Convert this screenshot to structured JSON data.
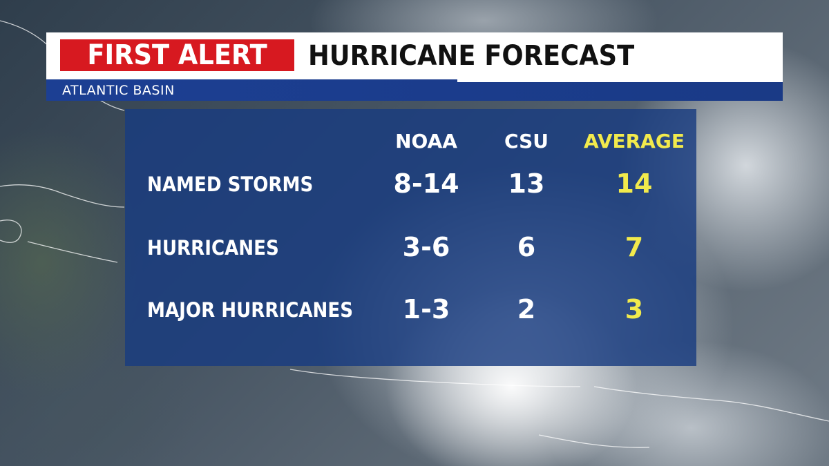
{
  "header": {
    "alert_label": "FIRST ALERT",
    "title": "HURRICANE FORECAST",
    "subtitle": "ATLANTIC BASIN"
  },
  "table": {
    "columns": [
      "NOAA",
      "CSU",
      "AVERAGE"
    ],
    "rows": [
      {
        "label": "NAMED STORMS",
        "values": [
          "8-14",
          "13",
          "14"
        ]
      },
      {
        "label": "HURRICANES",
        "values": [
          "3-6",
          "6",
          "7"
        ]
      },
      {
        "label": "MAJOR HURRICANES",
        "values": [
          "1-3",
          "2",
          "3"
        ]
      }
    ]
  },
  "colors": {
    "alert_red": "#d71920",
    "banner_blue": "#1c3f93",
    "panel_blue": "#183c80",
    "average_yellow": "#f2ea4c"
  }
}
